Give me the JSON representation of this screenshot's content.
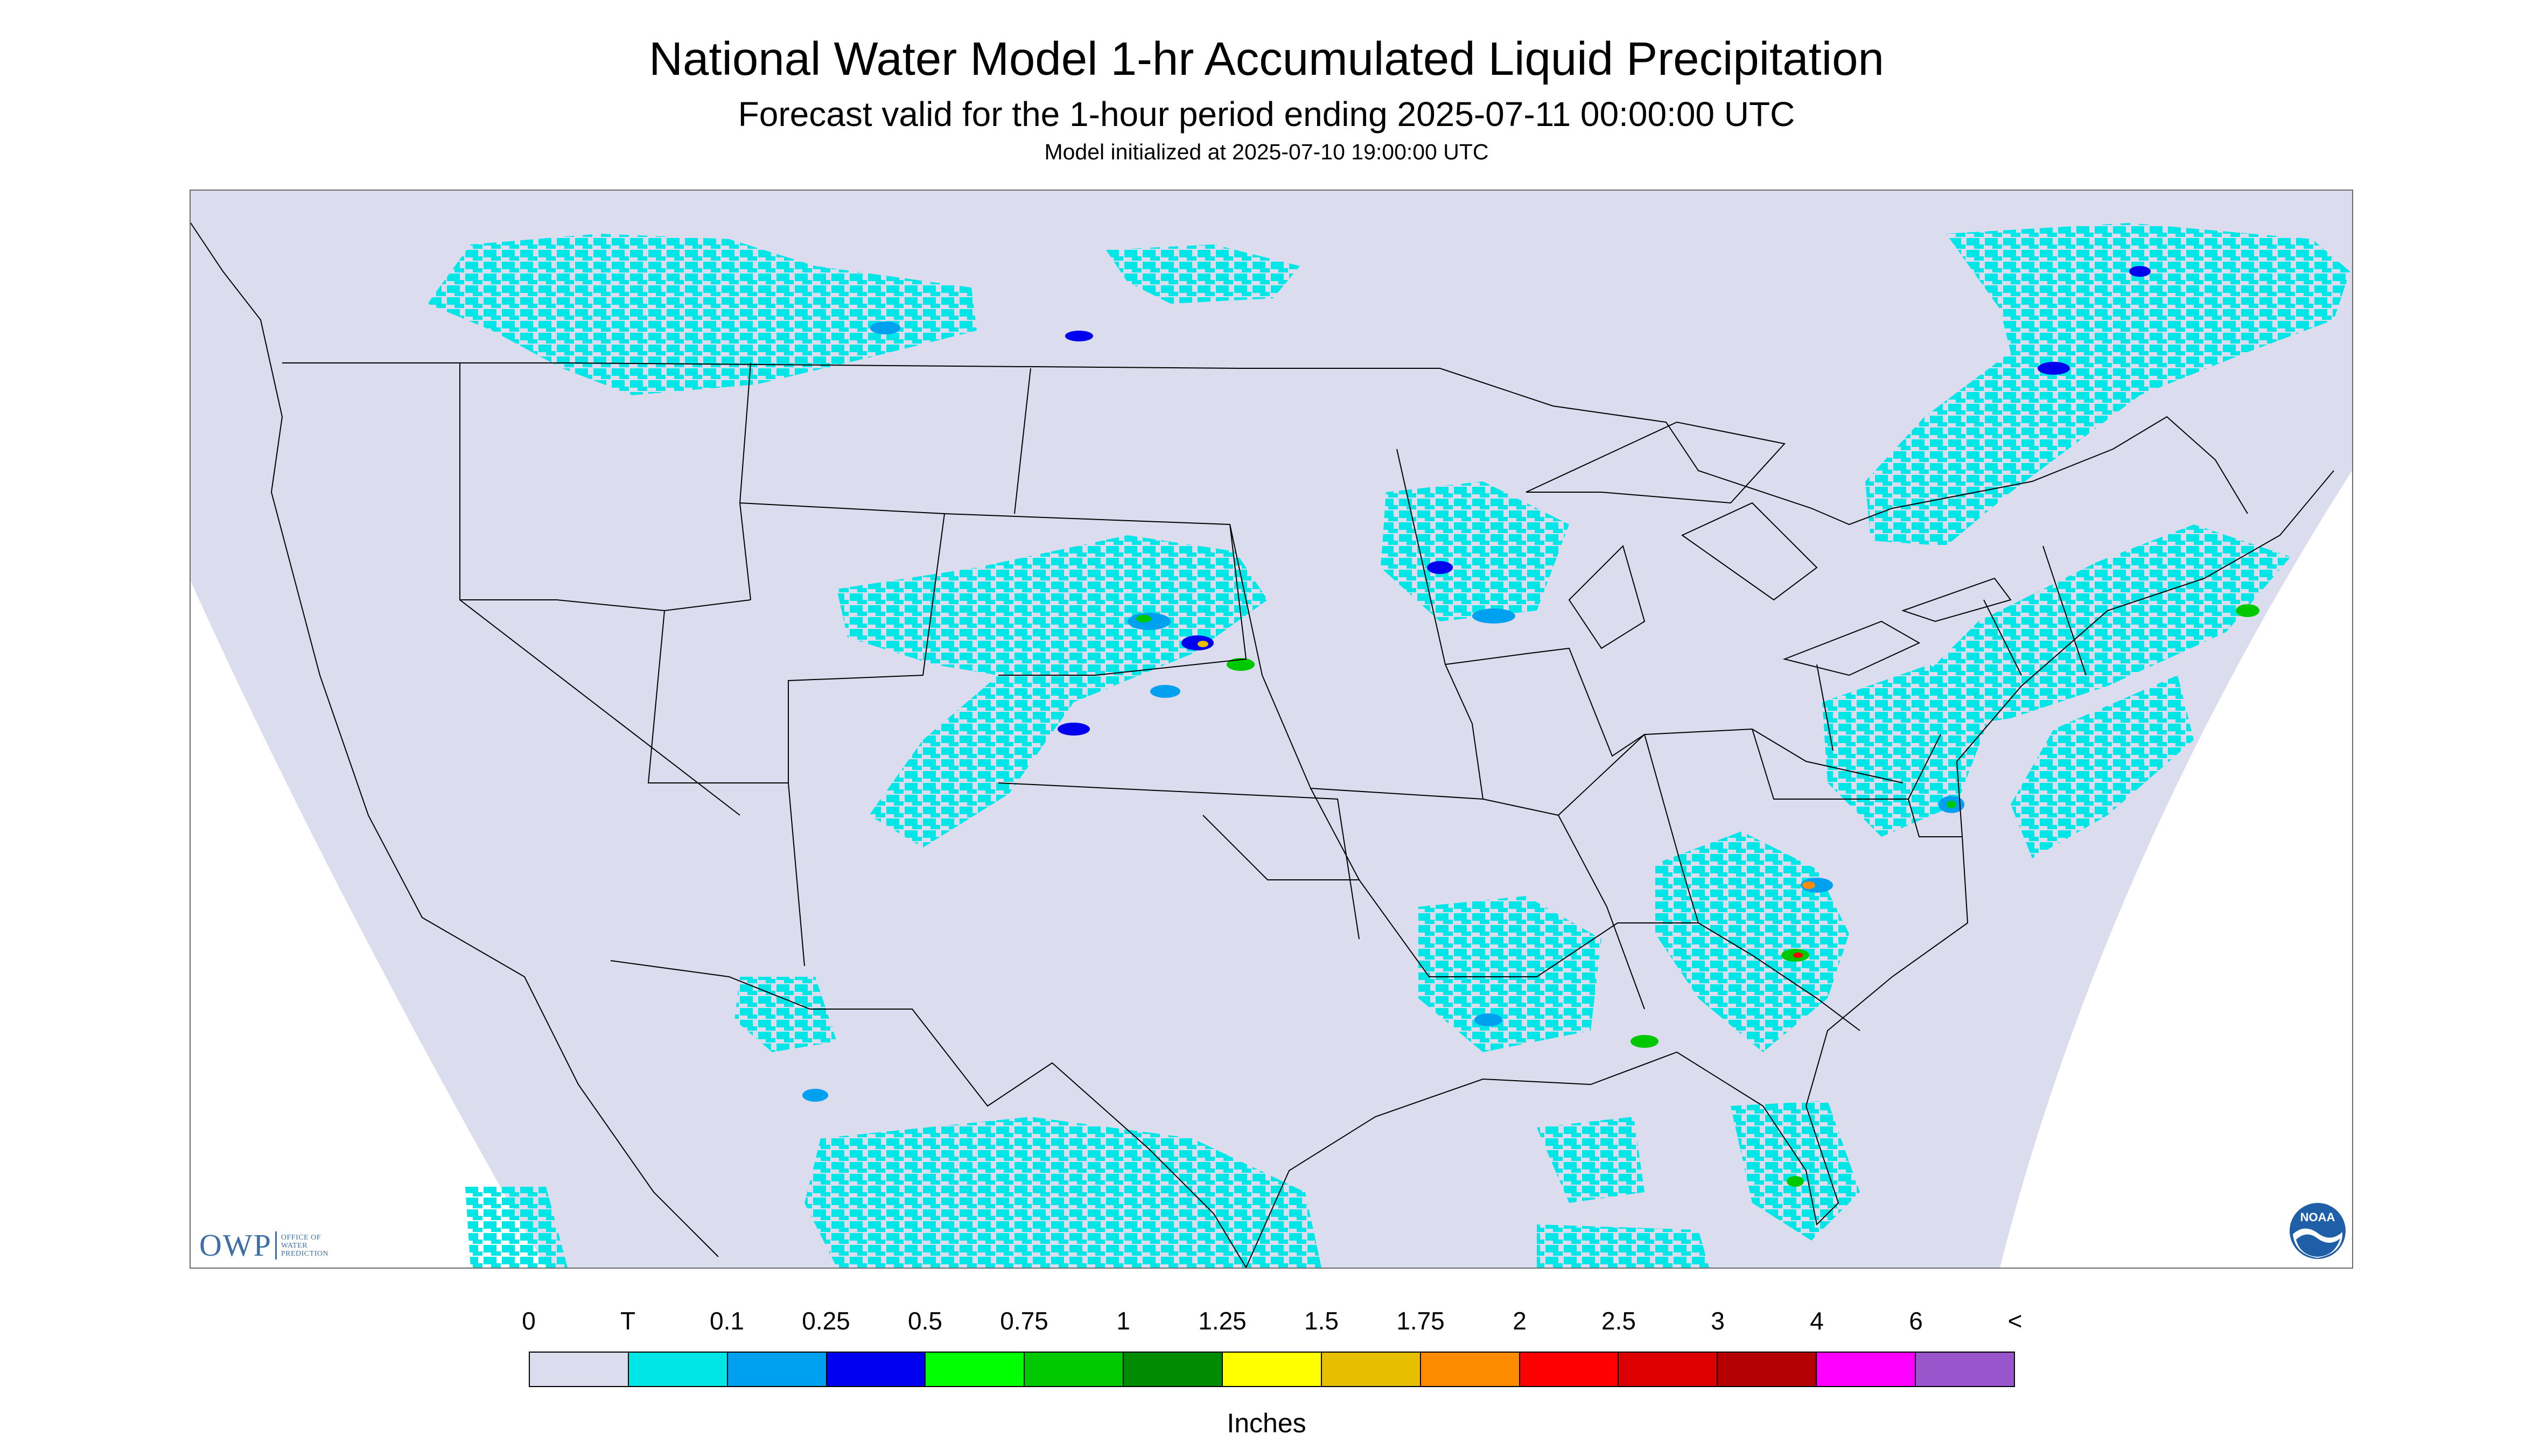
{
  "title": "National Water Model 1-hr Accumulated Liquid Precipitation",
  "subtitle": "Forecast valid for the 1-hour period ending 2025-07-11 00:00:00 UTC",
  "init_line": "Model initialized at 2025-07-10 19:00:00 UTC",
  "map": {
    "domain_fill": "#dcdcef",
    "outside_fill": "#ffffff",
    "boundary_color": "#000000",
    "features": [
      "state-boundaries",
      "country-boundaries",
      "coastlines",
      "great-lakes",
      "precipitation-field"
    ]
  },
  "logos": {
    "owp": {
      "mark": "OWP",
      "lines": [
        "OFFICE OF",
        "WATER",
        "PREDICTION"
      ]
    },
    "noaa": {
      "text": "NOAA"
    }
  },
  "legend": {
    "labels": [
      "0",
      "T",
      "0.1",
      "0.25",
      "0.5",
      "0.75",
      "1",
      "1.25",
      "1.5",
      "1.75",
      "2",
      "2.5",
      "3",
      "4",
      "6",
      "<"
    ],
    "colors": [
      "#dcdcef",
      "#00e6e6",
      "#00a0f0",
      "#0000f0",
      "#00ff00",
      "#00c800",
      "#008c00",
      "#ffff00",
      "#e6c000",
      "#ff8c00",
      "#ff0000",
      "#dc0000",
      "#b40000",
      "#ff00ff",
      "#9955cc"
    ],
    "units": "Inches"
  }
}
